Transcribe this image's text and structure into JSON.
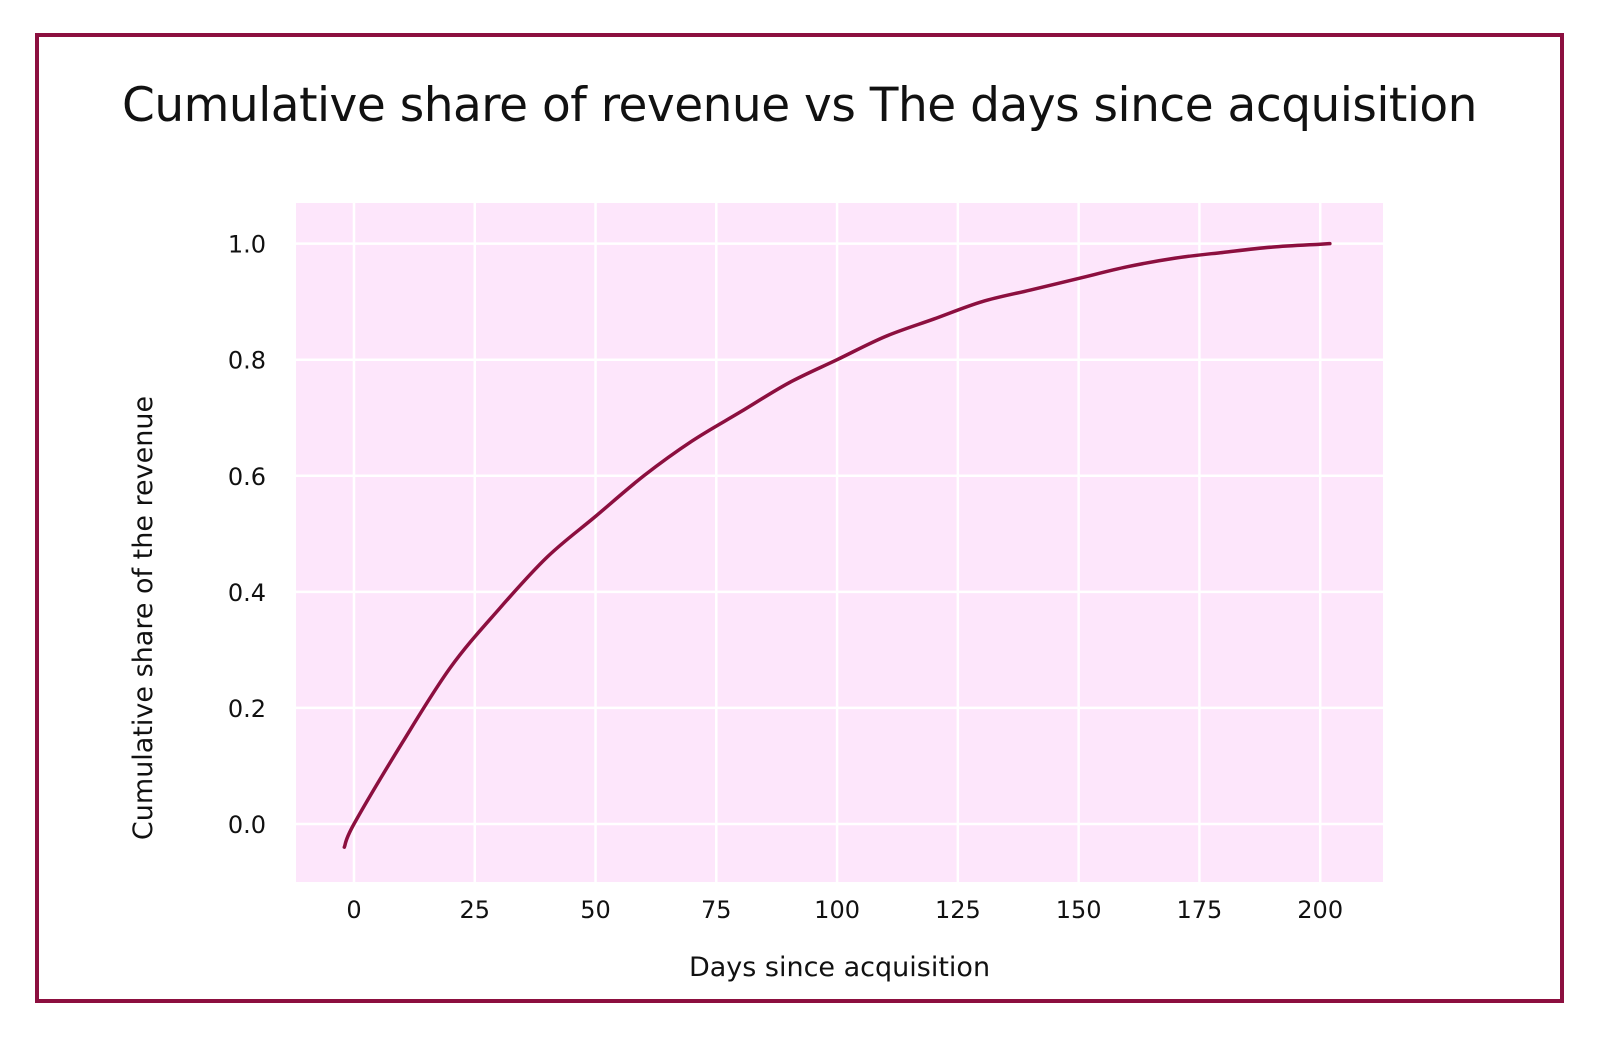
{
  "chart_data": {
    "type": "line",
    "title": "Cumulative share of revenue vs The days since acquisition",
    "xlabel": "Days since acquisition",
    "ylabel": "Cumulative share of the revenue",
    "xlim": [
      -12,
      213
    ],
    "ylim": [
      -0.1,
      1.07
    ],
    "x_ticks": [
      0,
      25,
      50,
      75,
      100,
      125,
      150,
      175,
      200
    ],
    "x_tick_labels": [
      "0",
      "25",
      "50",
      "75",
      "100",
      "125",
      "150",
      "175",
      "200"
    ],
    "y_ticks": [
      0.0,
      0.2,
      0.4,
      0.6,
      0.8,
      1.0
    ],
    "y_tick_labels": [
      "0.0",
      "0.2",
      "0.4",
      "0.6",
      "0.8",
      "1.0"
    ],
    "grid": true,
    "series": [
      {
        "x": [
          -2,
          0,
          10,
          20,
          30,
          40,
          50,
          60,
          70,
          80,
          90,
          100,
          110,
          120,
          130,
          140,
          150,
          160,
          170,
          180,
          190,
          200,
          202
        ],
        "values": [
          -0.04,
          0.0,
          0.14,
          0.27,
          0.37,
          0.46,
          0.53,
          0.6,
          0.66,
          0.71,
          0.76,
          0.8,
          0.84,
          0.87,
          0.9,
          0.92,
          0.94,
          0.96,
          0.975,
          0.985,
          0.994,
          0.999,
          1.0
        ]
      }
    ],
    "colors": {
      "line": "#8c0f3f",
      "plot_background": "#fde6fb",
      "grid": "#ffffff",
      "frame": "#8c0f3f"
    }
  }
}
